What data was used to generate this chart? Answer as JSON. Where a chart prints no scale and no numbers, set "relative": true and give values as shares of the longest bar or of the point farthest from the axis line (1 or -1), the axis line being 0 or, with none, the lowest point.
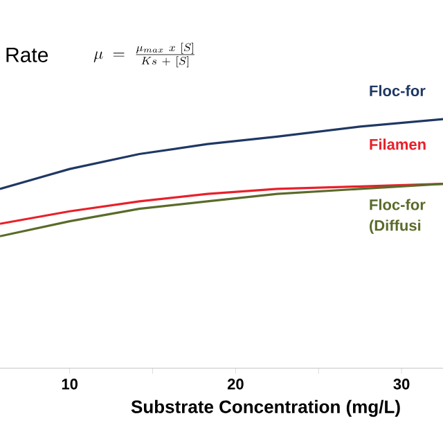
{
  "chart_data": {
    "type": "line",
    "title": "Rate",
    "annotations": [
      "\\mu\\ =\\ \\frac{\\mu_{max}\\ x\\ [S]}{Ks\\ +\\ [S]}"
    ],
    "xlabel": "Substrate Concentration (mg/L)",
    "relative": true,
    "xlim": [
      5.8,
      32.5
    ],
    "xticks": [
      10,
      {
        "value": 15,
        "label": null
      },
      20,
      {
        "value": 25,
        "label": null
      },
      30
    ],
    "series": [
      {
        "name": "Floc-for",
        "color": "#1f3864",
        "x": [
          5.8,
          10,
          14.2,
          18.3,
          22.5,
          27.5,
          32.5
        ],
        "values": [
          0.72,
          0.8,
          0.86,
          0.9,
          0.93,
          0.97,
          1
        ]
      },
      {
        "name": "Filamen",
        "color": "#e8202a",
        "x": [
          5.8,
          10,
          14.2,
          18.3,
          22.5,
          27.5,
          32.5
        ],
        "values": [
          0.58,
          0.63,
          0.67,
          0.7,
          0.72,
          0.73,
          0.74
        ]
      },
      {
        "name": "Floc-for (Diffusi",
        "color": "#5a6b2a",
        "x": [
          5.8,
          10,
          14.2,
          18.3,
          22.5,
          27.5,
          32.5
        ],
        "values": [
          0.53,
          0.59,
          0.64,
          0.67,
          0.7,
          0.72,
          0.74
        ]
      }
    ]
  }
}
